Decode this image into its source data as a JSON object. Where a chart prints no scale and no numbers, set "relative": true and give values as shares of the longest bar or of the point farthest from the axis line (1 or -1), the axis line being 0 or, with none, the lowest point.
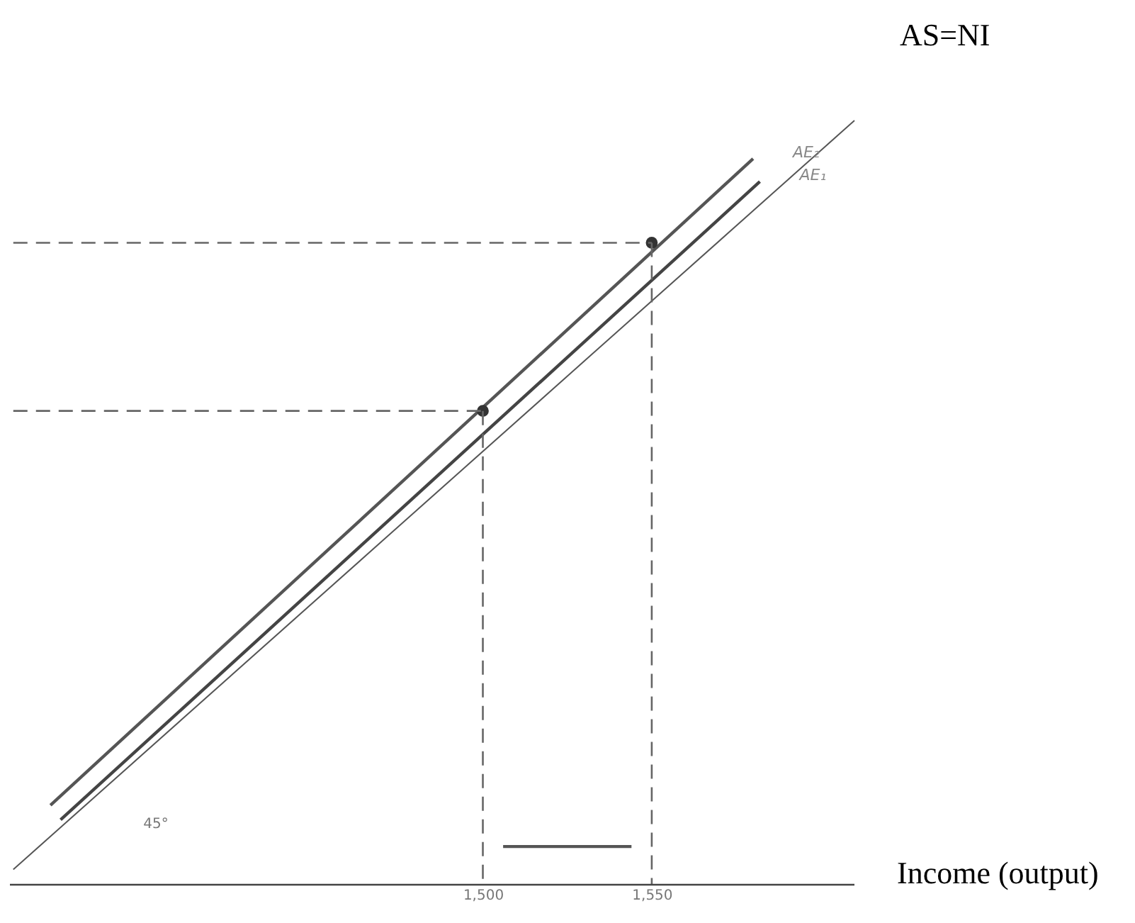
{
  "chart_data": {
    "type": "line",
    "xlabel": "Income (output)",
    "relative": true,
    "xlim": [
      1360,
      1610
    ],
    "xticks": [
      {
        "value": 1500,
        "label": "1,500"
      },
      {
        "value": 1550,
        "label": "1,550"
      }
    ],
    "tick_labels": "x",
    "grid": false,
    "marker": "none",
    "line_style": "solid",
    "annotations": [
      "45°"
    ],
    "series": [
      {
        "name": "AS=NI",
        "color": "#555555",
        "x": [
          1361,
          1610
        ],
        "values": [
          0.02,
          1
        ]
      },
      {
        "name": "AE₂",
        "color": "#555555",
        "x": [
          1372,
          1580
        ],
        "values": [
          0.104,
          0.95
        ]
      },
      {
        "name": "AE₁",
        "color": "#444444",
        "x": [
          1375,
          1582
        ],
        "values": [
          0.085,
          0.92
        ]
      },
      {
        "type": "scatter",
        "marker": "circle",
        "color": "#333333",
        "x": [
          1500,
          1550
        ],
        "values": [
          0.62,
          0.84
        ]
      },
      {
        "line_style": "dashed",
        "color": "#666666",
        "x": [
          1361,
          1500
        ],
        "values": [
          0.62,
          0.62
        ]
      },
      {
        "line_style": "dashed",
        "color": "#666666",
        "x": [
          1361,
          1550
        ],
        "values": [
          0.84,
          0.84
        ]
      },
      {
        "line_style": "dashed",
        "color": "#666666",
        "x": [
          1500,
          1500
        ],
        "values": [
          0.62,
          0
        ]
      },
      {
        "line_style": "dashed",
        "color": "#666666",
        "x": [
          1550,
          1550
        ],
        "values": [
          0.84,
          0
        ]
      },
      {
        "color": "#555555",
        "x": [
          1506,
          1544
        ],
        "values": [
          0.05,
          0.05
        ]
      }
    ]
  }
}
